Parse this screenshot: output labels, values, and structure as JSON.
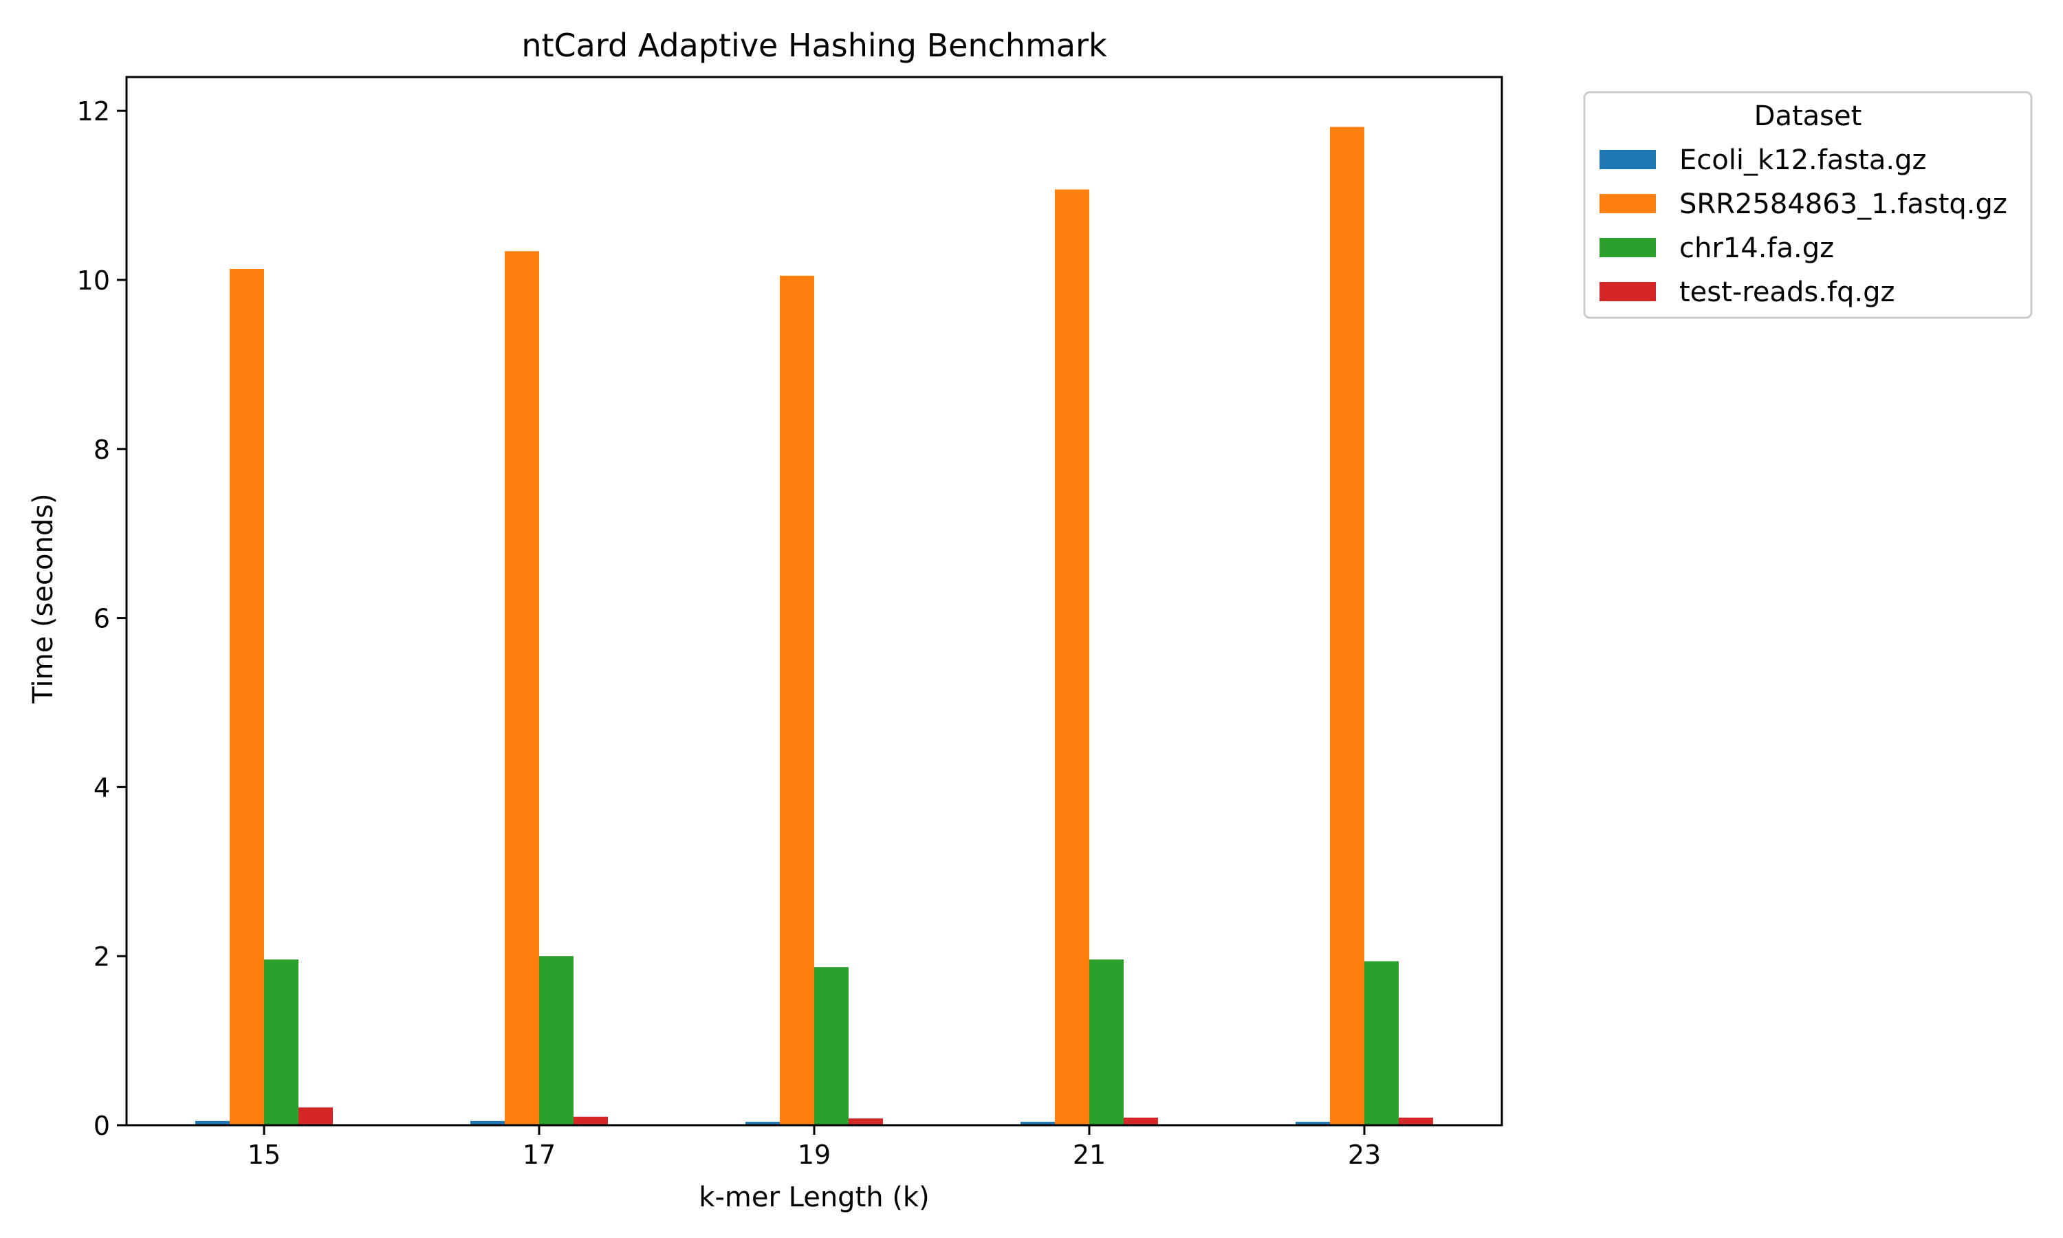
{
  "chart_data": {
    "type": "bar",
    "title": "ntCard Adaptive Hashing Benchmark",
    "xlabel": "k-mer Length (k)",
    "ylabel": "Time (seconds)",
    "categories": [
      "15",
      "17",
      "19",
      "21",
      "23"
    ],
    "ylim": [
      0,
      12.4
    ],
    "yticks": [
      0,
      2,
      4,
      6,
      8,
      10,
      12
    ],
    "grid": false,
    "legend": {
      "title": "Dataset",
      "placement": "outside-right-top"
    },
    "series": [
      {
        "name": "Ecoli_k12.fasta.gz",
        "color": "#1f77b4",
        "values": [
          0.05,
          0.05,
          0.04,
          0.04,
          0.04
        ]
      },
      {
        "name": "SRR2584863_1.fastq.gz",
        "color": "#ff7f0e",
        "values": [
          10.13,
          10.34,
          10.05,
          11.07,
          11.81
        ]
      },
      {
        "name": "chr14.fa.gz",
        "color": "#2ca02c",
        "values": [
          1.96,
          2.0,
          1.87,
          1.96,
          1.94
        ]
      },
      {
        "name": "test-reads.fq.gz",
        "color": "#d62728",
        "values": [
          0.21,
          0.1,
          0.08,
          0.09,
          0.09
        ]
      }
    ]
  }
}
